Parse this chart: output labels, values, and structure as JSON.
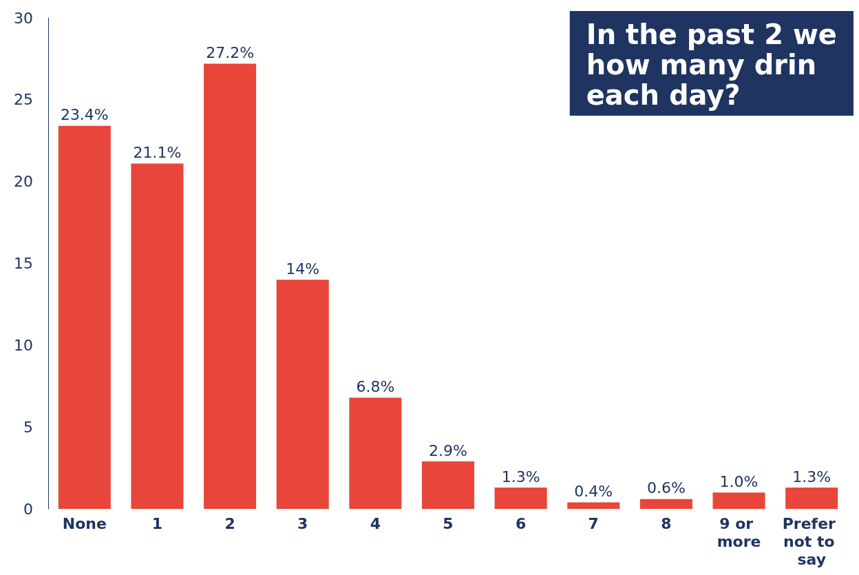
{
  "chart_data": {
    "type": "bar",
    "title": "In the past 2 we\nhow many drin\neach day?",
    "categories": [
      "None",
      "1",
      "2",
      "3",
      "4",
      "5",
      "6",
      "7",
      "8",
      "9 or more",
      "Prefer not to say"
    ],
    "values": [
      23.4,
      21.1,
      27.2,
      14,
      6.8,
      2.9,
      1.3,
      0.4,
      0.6,
      1.0,
      1.3
    ],
    "value_labels": [
      "23.4%",
      "21.1%",
      "27.2%",
      "14%",
      "6.8%",
      "2.9%",
      "1.3%",
      "0.4%",
      "0.6%",
      "1.0%",
      "1.3%"
    ],
    "color": "#e8463a",
    "ylim": [
      0,
      30
    ],
    "yticks": [
      0,
      5,
      10,
      15,
      20,
      25,
      30
    ],
    "grid": false
  }
}
